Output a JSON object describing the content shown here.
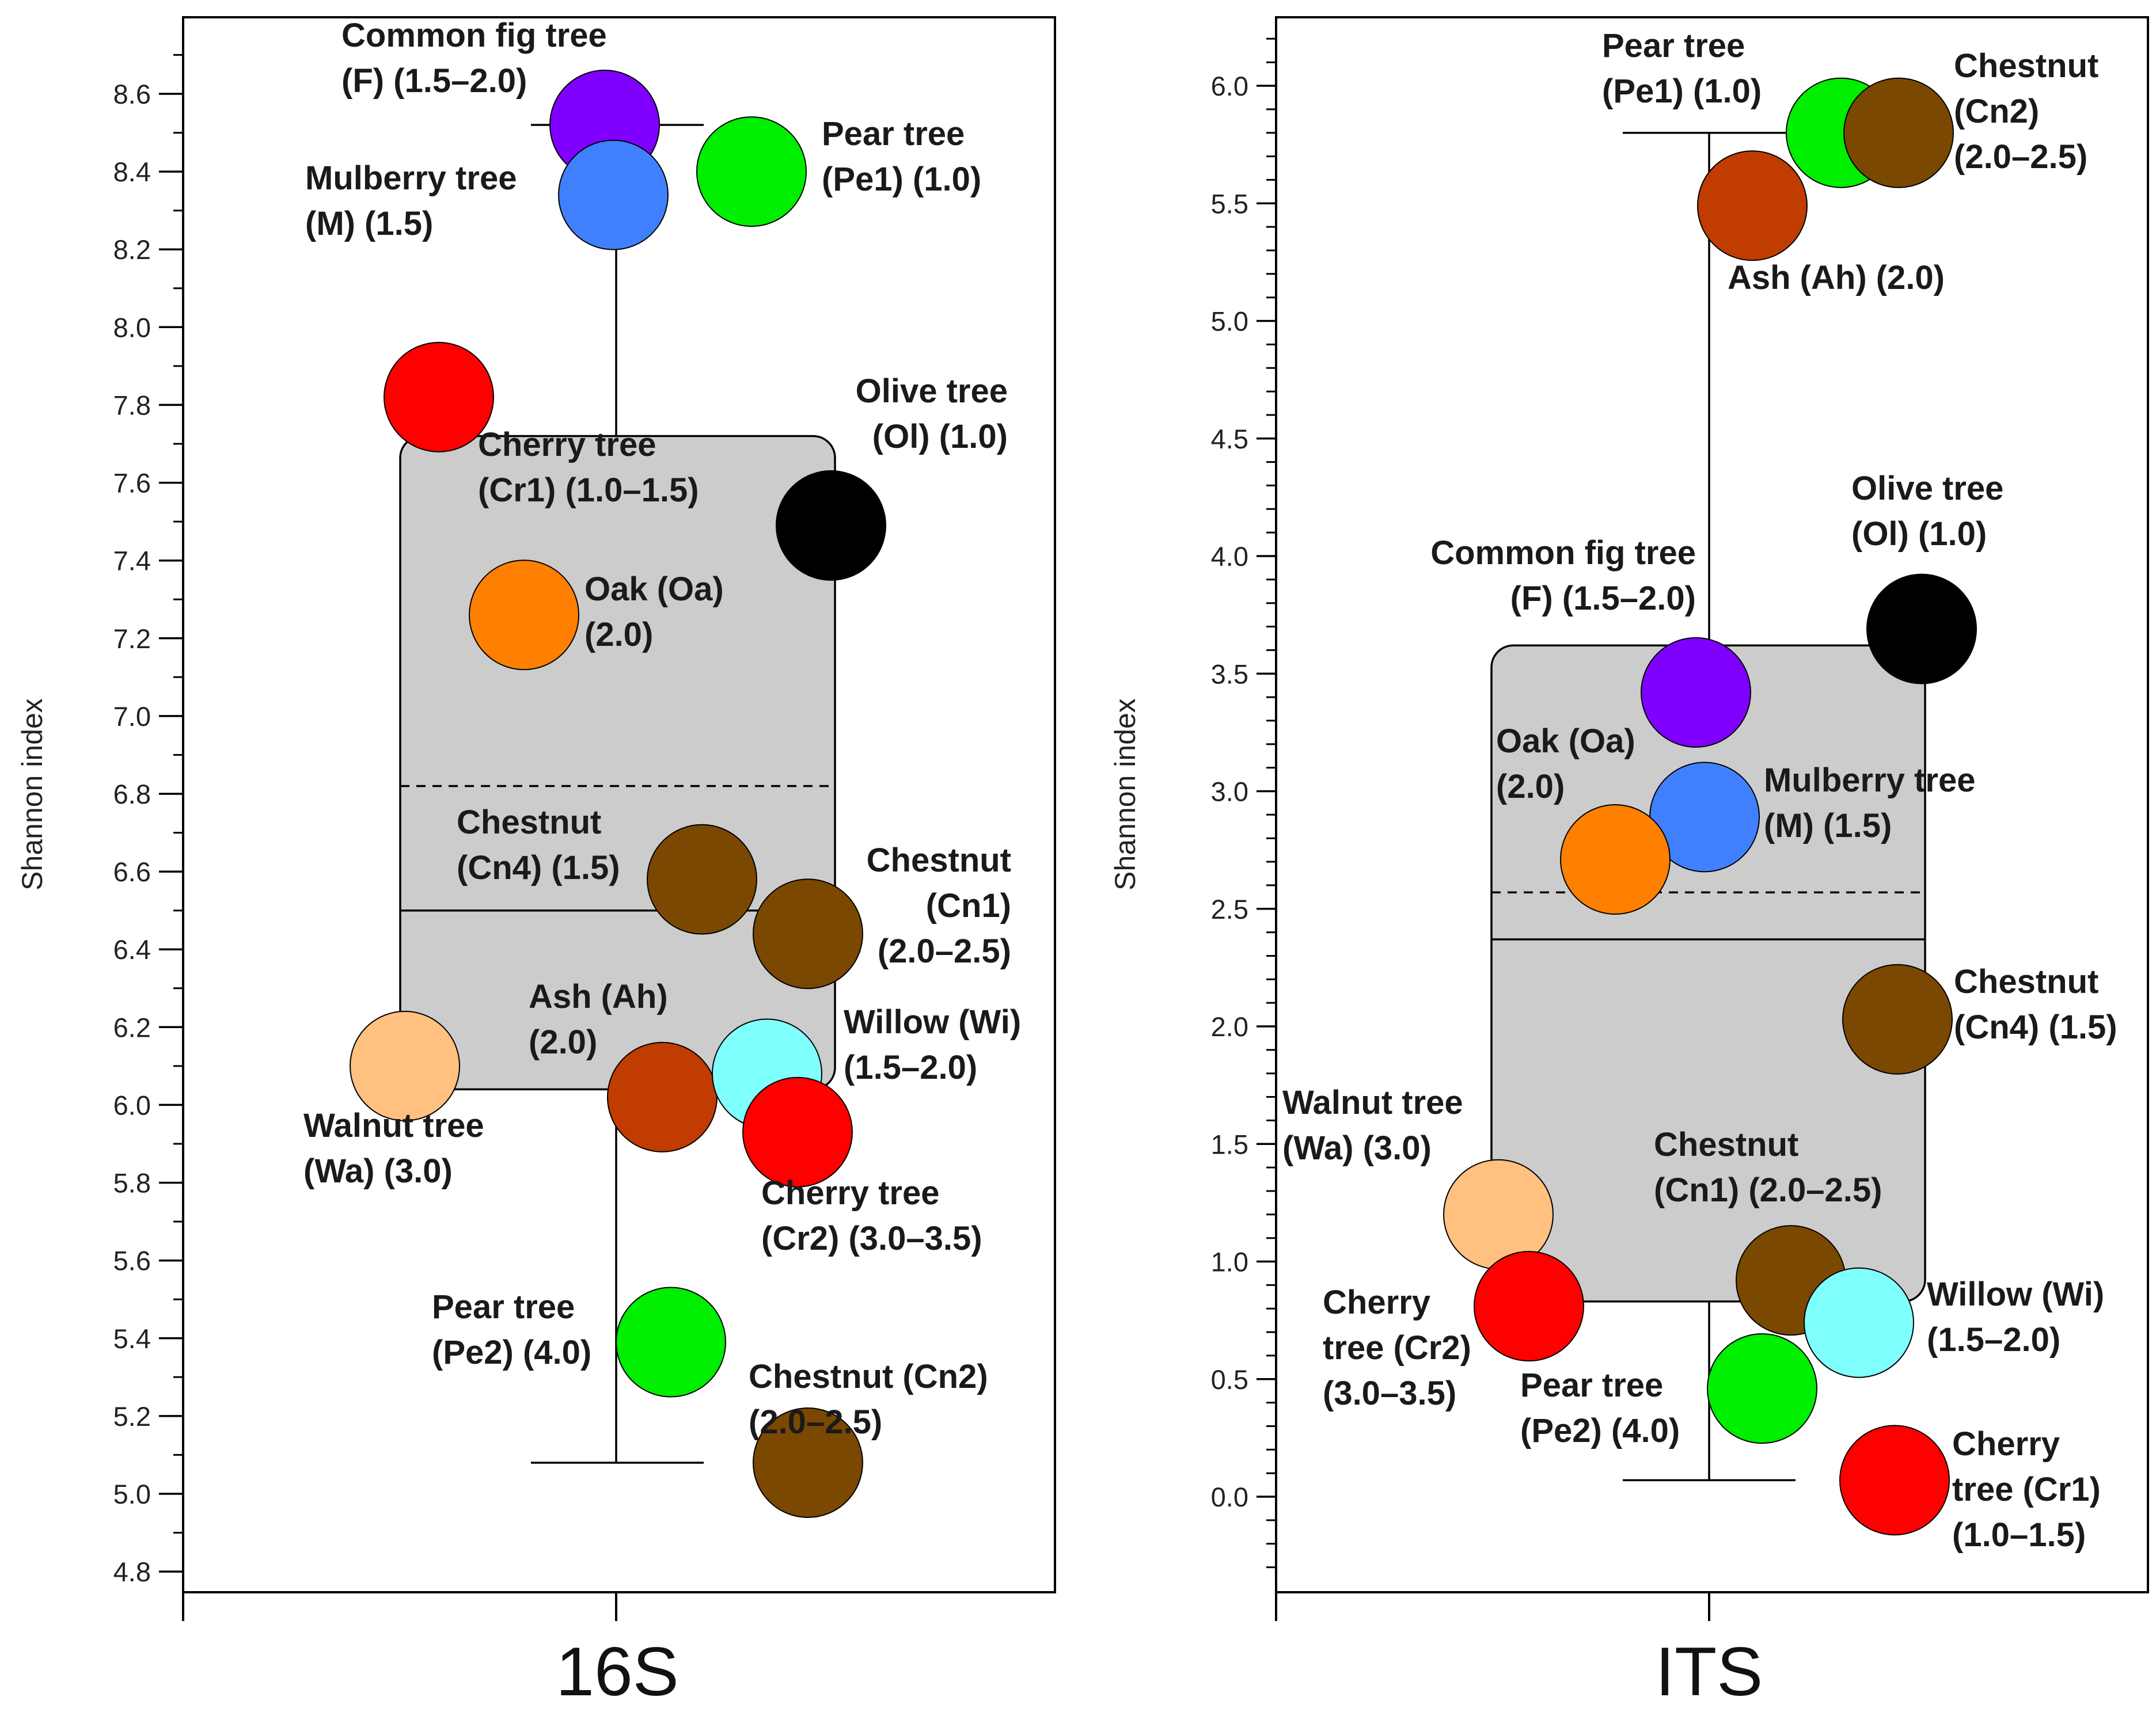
{
  "chart_data": [
    {
      "type": "box",
      "title": "16S",
      "ylabel": "Shannon index",
      "ylim": [
        4.75,
        8.95
      ],
      "yticks": [
        "4.8",
        "5.0",
        "5.2",
        "5.4",
        "5.6",
        "5.8",
        "6.0",
        "6.2",
        "6.4",
        "6.6",
        "6.8",
        "7.0",
        "7.2",
        "7.4",
        "7.6",
        "7.8",
        "8.0",
        "8.2",
        "8.4",
        "8.6"
      ],
      "box": {
        "q1": 6.04,
        "median": 6.5,
        "mean": 6.82,
        "q3": 7.72,
        "whisker_low": 5.08,
        "whisker_high": 8.52
      },
      "points": [
        {
          "name": "Common fig tree (F)",
          "lines": [
            "Common fig tree",
            "(F) (1.5–2.0)"
          ],
          "value": 8.52,
          "color": "#8000ff"
        },
        {
          "name": "Mulberry tree (M)",
          "lines": [
            "Mulberry tree",
            "(M) (1.5)"
          ],
          "value": 8.34,
          "color": "#4080ff"
        },
        {
          "name": "Pear tree (Pe1)",
          "lines": [
            "Pear tree",
            "(Pe1) (1.0)"
          ],
          "value": 8.4,
          "color": "#00ee00"
        },
        {
          "name": "Cherry tree (Cr1)",
          "lines": [
            "Cherry tree",
            "(Cr1) (1.0–1.5)"
          ],
          "value": 7.82,
          "color": "#ff0000"
        },
        {
          "name": "Olive tree (Ol)",
          "lines": [
            "Olive tree",
            "(Ol) (1.0)"
          ],
          "value": 7.49,
          "color": "#000000"
        },
        {
          "name": "Oak (Oa)",
          "lines": [
            "Oak (Oa)",
            "(2.0)"
          ],
          "value": 7.26,
          "color": "#ff8000"
        },
        {
          "name": "Chestnut (Cn4)",
          "lines": [
            "Chestnut",
            "(Cn4) (1.5)"
          ],
          "value": 6.58,
          "color": "#7a4800"
        },
        {
          "name": "Chestnut (Cn1)",
          "lines": [
            "Chestnut",
            "(Cn1)",
            "(2.0–2.5)"
          ],
          "value": 6.44,
          "color": "#7a4800"
        },
        {
          "name": "Walnut tree (Wa)",
          "lines": [
            "Walnut tree",
            "(Wa) (3.0)"
          ],
          "value": 6.1,
          "color": "#ffc080"
        },
        {
          "name": "Ash (Ah)",
          "lines": [
            "Ash (Ah)",
            "(2.0)"
          ],
          "value": 6.02,
          "color": "#c03c00"
        },
        {
          "name": "Willow (Wi)",
          "lines": [
            "Willow (Wi)",
            "(1.5–2.0)"
          ],
          "value": 6.08,
          "color": "#80ffff"
        },
        {
          "name": "Cherry tree (Cr2)",
          "lines": [
            "Cherry tree",
            "(Cr2) (3.0–3.5)"
          ],
          "value": 5.93,
          "color": "#ff0000"
        },
        {
          "name": "Pear tree (Pe2)",
          "lines": [
            "Pear tree",
            "(Pe2) (4.0)"
          ],
          "value": 5.39,
          "color": "#00ee00"
        },
        {
          "name": "Chestnut (Cn2)",
          "lines": [
            "Chestnut (Cn2)",
            "(2.0–2.5)"
          ],
          "value": 5.08,
          "color": "#7a4800"
        }
      ]
    },
    {
      "type": "box",
      "title": "ITS",
      "ylabel": "Shannon index",
      "ylim": [
        -0.4,
        6.3
      ],
      "yticks": [
        "0.0",
        "0.5",
        "1.0",
        "1.5",
        "2.0",
        "2.5",
        "3.0",
        "3.5",
        "4.0",
        "4.5",
        "5.0",
        "5.5",
        "6.0"
      ],
      "box": {
        "q1": 0.83,
        "median": 2.37,
        "mean": 2.57,
        "q3": 3.62,
        "whisker_low": 0.07,
        "whisker_high": 5.8
      },
      "points": [
        {
          "name": "Pear tree (Pe1)",
          "lines": [
            "Pear tree",
            "(Pe1) (1.0)"
          ],
          "value": 5.8,
          "color": "#00ee00"
        },
        {
          "name": "Chestnut (Cn2)",
          "lines": [
            "Chestnut",
            "(Cn2)",
            "(2.0–2.5)"
          ],
          "value": 5.8,
          "color": "#7a4800"
        },
        {
          "name": "Ash (Ah)",
          "lines": [
            "Ash (Ah) (2.0)"
          ],
          "value": 5.49,
          "color": "#c03c00"
        },
        {
          "name": "Olive tree (Ol)",
          "lines": [
            "Olive tree",
            "(Ol) (1.0)"
          ],
          "value": 3.69,
          "color": "#000000"
        },
        {
          "name": "Common fig tree (F)",
          "lines": [
            "Common fig tree",
            "(F) (1.5–2.0)"
          ],
          "value": 3.42,
          "color": "#8000ff"
        },
        {
          "name": "Mulberry tree (M)",
          "lines": [
            "Mulberry tree",
            "(M) (1.5)"
          ],
          "value": 2.89,
          "color": "#4080ff"
        },
        {
          "name": "Oak (Oa)",
          "lines": [
            "Oak (Oa)",
            "(2.0)"
          ],
          "value": 2.71,
          "color": "#ff8000"
        },
        {
          "name": "Chestnut (Cn4)",
          "lines": [
            "Chestnut",
            "(Cn4) (1.5)"
          ],
          "value": 2.03,
          "color": "#7a4800"
        },
        {
          "name": "Walnut tree (Wa)",
          "lines": [
            "Walnut tree",
            "(Wa) (3.0)"
          ],
          "value": 1.2,
          "color": "#ffc080"
        },
        {
          "name": "Chestnut (Cn1)",
          "lines": [
            "Chestnut",
            "(Cn1) (2.0–2.5)"
          ],
          "value": 0.92,
          "color": "#7a4800"
        },
        {
          "name": "Cherry tree (Cr2)",
          "lines": [
            "Cherry",
            "tree (Cr2)",
            "(3.0–3.5)"
          ],
          "value": 0.81,
          "color": "#ff0000"
        },
        {
          "name": "Willow (Wi)",
          "lines": [
            "Willow (Wi)",
            "(1.5–2.0)"
          ],
          "value": 0.74,
          "color": "#80ffff"
        },
        {
          "name": "Pear tree (Pe2)",
          "lines": [
            "Pear tree",
            "(Pe2) (4.0)"
          ],
          "value": 0.46,
          "color": "#00ee00"
        },
        {
          "name": "Cherry tree (Cr1)",
          "lines": [
            "Cherry",
            "tree (Cr1)",
            "(1.0–1.5)"
          ],
          "value": 0.07,
          "color": "#ff0000"
        }
      ]
    }
  ]
}
